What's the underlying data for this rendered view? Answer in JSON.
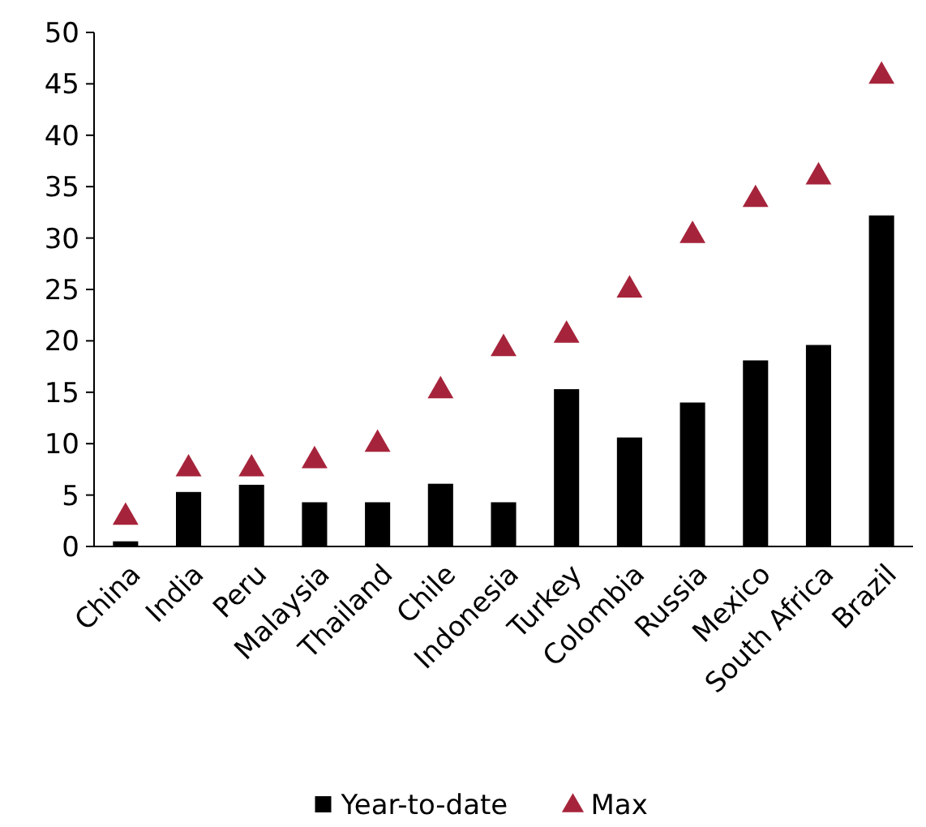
{
  "chart_data": {
    "type": "bar",
    "categories": [
      "China",
      "India",
      "Peru",
      "Malaysia",
      "Thailand",
      "Chile",
      "Indonesia",
      "Turkey",
      "Colombia",
      "Russia",
      "Mexico",
      "South Africa",
      "Brazil"
    ],
    "series": [
      {
        "name": "Year-to-date",
        "color": "#000000",
        "values": [
          0.5,
          5.3,
          6.0,
          4.3,
          4.3,
          6.1,
          4.3,
          15.3,
          10.6,
          14.0,
          18.1,
          19.6,
          32.2
        ]
      },
      {
        "name": "Max",
        "type": "scatter",
        "color": "#a6243b",
        "marker": "triangle",
        "values": [
          3.0,
          7.7,
          7.7,
          8.5,
          10.1,
          15.3,
          19.4,
          20.7,
          25.1,
          30.4,
          33.9,
          36.1,
          45.9
        ]
      }
    ],
    "ylim": [
      0,
      50
    ],
    "yticks": [
      0,
      5,
      10,
      15,
      20,
      25,
      30,
      35,
      40,
      45,
      50
    ],
    "grid": false,
    "legend": "bottom"
  }
}
